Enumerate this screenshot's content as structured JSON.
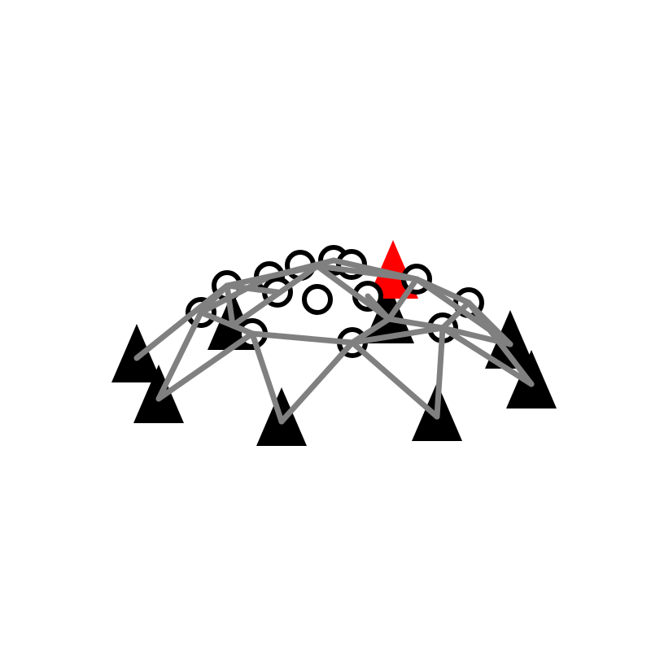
{
  "diagram": {
    "type": "truss-dome",
    "colors": {
      "background": "#ffffff",
      "member": "#808080",
      "node_outline": "#000000",
      "node_fill": "#ffffff",
      "support": "#000000",
      "highlighted_support": "#ff0000"
    },
    "node_count": 14,
    "support_count": 10,
    "highlighted_support_count": 1,
    "member_count": 33
  }
}
